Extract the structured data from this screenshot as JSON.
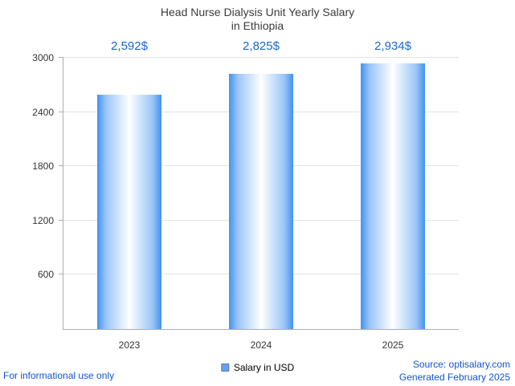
{
  "header": {
    "title_line1": "Head Nurse Dialysis Unit Yearly Salary",
    "title_line2": "in Ethiopia"
  },
  "chart_data": {
    "type": "bar",
    "title": "Head Nurse Dialysis Unit Yearly Salary in Ethiopia",
    "categories": [
      "2023",
      "2024",
      "2025"
    ],
    "values": [
      2592,
      2825,
      2934
    ],
    "value_labels": [
      "2,592$",
      "2,825$",
      "2,934$"
    ],
    "series_name": "Salary in USD",
    "xlabel": "",
    "ylabel": "",
    "ylim": [
      0,
      3000
    ],
    "yticks": [
      600,
      1200,
      1800,
      2400,
      3000
    ],
    "grid": true,
    "legend_position": "bottom",
    "bar_style": "horizontal-gradient-cylinder"
  },
  "legend": {
    "label": "Salary in USD"
  },
  "footer": {
    "disclaimer": "For informational use only",
    "source": "Source: optisalary.com",
    "generated": "Generated February 2025"
  },
  "colors": {
    "title_text": "#3b3b3b",
    "value_label": "#1967d2",
    "bar_edge": "#4292f0",
    "bar_center": "#ffffff",
    "legend_marker": "#6d9eeb",
    "link": "#1155cc",
    "axis": "#adadad",
    "gridline": "#e3e3e3"
  }
}
